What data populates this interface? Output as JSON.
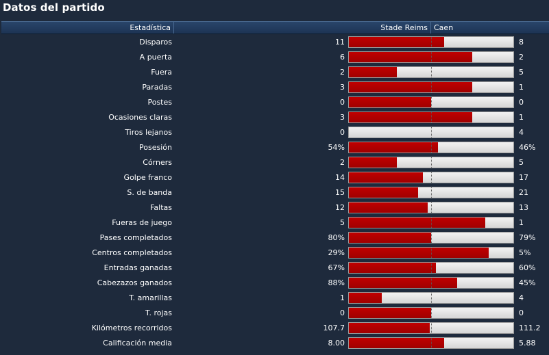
{
  "title": "Datos del partido",
  "header": {
    "stat": "Estadística",
    "home": "Stade Reims",
    "away": "Caen"
  },
  "colors": {
    "home": "#b00000",
    "away": "#e6e6e6",
    "background": "#1e2a3c",
    "header": "#223c5e"
  },
  "stats": [
    {
      "label": "Disparos",
      "home": "11",
      "away": "8",
      "share": 0.58
    },
    {
      "label": "A puerta",
      "home": "6",
      "away": "2",
      "share": 0.75
    },
    {
      "label": "Fuera",
      "home": "2",
      "away": "5",
      "share": 0.29
    },
    {
      "label": "Paradas",
      "home": "3",
      "away": "1",
      "share": 0.75
    },
    {
      "label": "Postes",
      "home": "0",
      "away": "0",
      "share": 0.5
    },
    {
      "label": "Ocasiones claras",
      "home": "3",
      "away": "1",
      "share": 0.75
    },
    {
      "label": "Tiros lejanos",
      "home": "0",
      "away": "4",
      "share": 0.0
    },
    {
      "label": "Posesión",
      "home": "54%",
      "away": "46%",
      "share": 0.54
    },
    {
      "label": "Córners",
      "home": "2",
      "away": "5",
      "share": 0.29
    },
    {
      "label": "Golpe franco",
      "home": "14",
      "away": "17",
      "share": 0.45
    },
    {
      "label": "S. de banda",
      "home": "15",
      "away": "21",
      "share": 0.42
    },
    {
      "label": "Faltas",
      "home": "12",
      "away": "13",
      "share": 0.48
    },
    {
      "label": "Fueras de juego",
      "home": "5",
      "away": "1",
      "share": 0.83
    },
    {
      "label": "Pases completados",
      "home": "80%",
      "away": "79%",
      "share": 0.5
    },
    {
      "label": "Centros completados",
      "home": "29%",
      "away": "5%",
      "share": 0.85
    },
    {
      "label": "Entradas ganadas",
      "home": "67%",
      "away": "60%",
      "share": 0.53
    },
    {
      "label": "Cabezazos ganados",
      "home": "88%",
      "away": "45%",
      "share": 0.66
    },
    {
      "label": "T. amarillas",
      "home": "1",
      "away": "4",
      "share": 0.2
    },
    {
      "label": "T. rojas",
      "home": "0",
      "away": "0",
      "share": 0.5
    },
    {
      "label": "Kilómetros recorridos",
      "home": "107.7",
      "away": "111.2",
      "share": 0.49
    },
    {
      "label": "Calificación media",
      "home": "8.00",
      "away": "5.88",
      "share": 0.58
    }
  ]
}
